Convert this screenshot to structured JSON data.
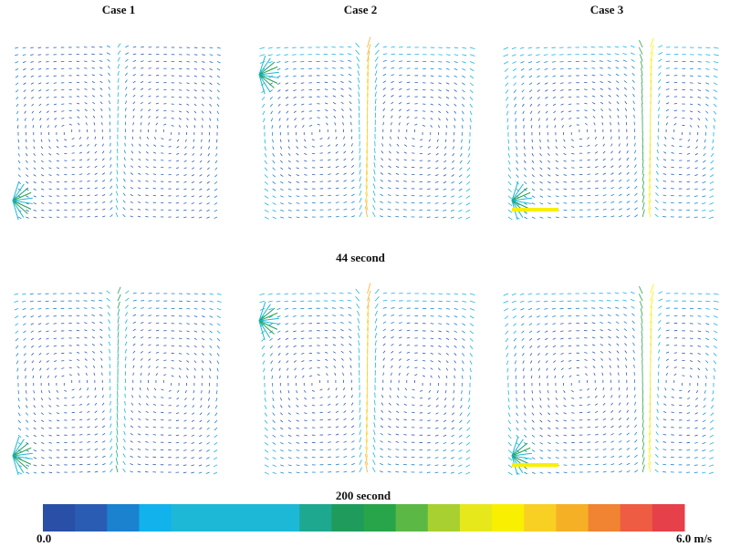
{
  "columns": [
    {
      "title": "Case 1"
    },
    {
      "title": "Case 2"
    },
    {
      "title": "Case 3"
    }
  ],
  "rows": [
    {
      "label": "44 second"
    },
    {
      "label": "200 second"
    }
  ],
  "colorbar": {
    "min_label": "0.0",
    "max_label": "6.0 m/s",
    "colors": [
      "#2a4fa6",
      "#2b5cb4",
      "#1a82cf",
      "#12b2ec",
      "#1cb8d6",
      "#1cb8d6",
      "#1cb8d6",
      "#1cb8d6",
      "#1ea890",
      "#1f9c5c",
      "#28a44a",
      "#5cb844",
      "#a8d030",
      "#e6e81c",
      "#f8f000",
      "#f8d024",
      "#f6b026",
      "#f08432",
      "#ee5c44",
      "#e6404a"
    ]
  }
}
